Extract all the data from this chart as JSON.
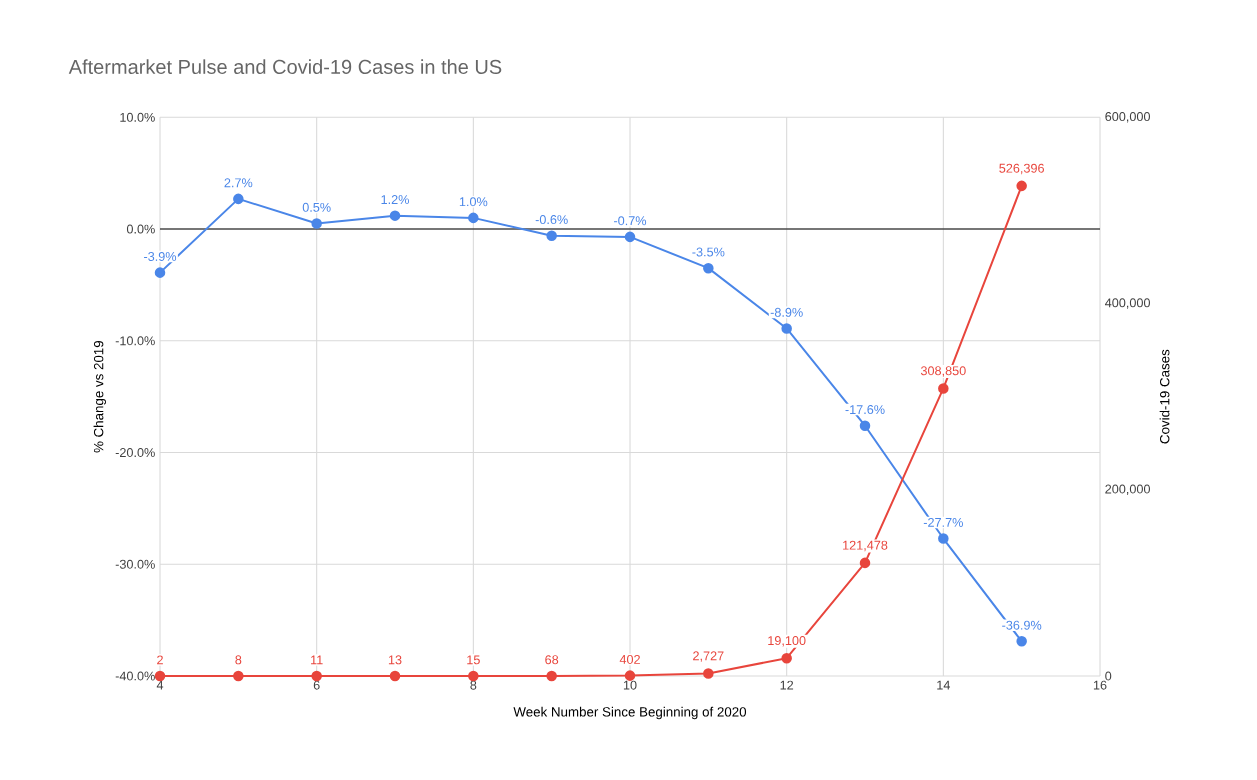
{
  "chart_data": {
    "type": "line",
    "title": "Aftermarket Pulse and Covid-19 Cases in the US",
    "xlabel": "Week Number Since Beginning of 2020",
    "ylabel": "% Change vs 2019",
    "y2label": "Covid-19 Cases",
    "x": [
      4,
      5,
      6,
      7,
      8,
      9,
      10,
      11,
      12,
      13,
      14,
      15
    ],
    "series": [
      {
        "color": "#4a86e8",
        "values": [
          -3.9,
          2.7,
          0.5,
          1.2,
          1.0,
          -0.6,
          -0.7,
          -3.5,
          -8.9,
          -17.6,
          -27.7,
          -36.9
        ],
        "value_labels": [
          "-3.9%",
          "2.7%",
          "0.5%",
          "1.2%",
          "1.0%",
          "-0.6%",
          "-0.7%",
          "-3.5%",
          "-8.9%",
          "-17.6%",
          "-27.7%",
          "-36.9%"
        ]
      },
      {
        "color": "#e8453c",
        "axis": "y2",
        "values": [
          2,
          8,
          11,
          13,
          15,
          68,
          402,
          2727,
          19100,
          121478,
          308850,
          526396
        ],
        "value_labels": [
          "2",
          "8",
          "11",
          "13",
          "15",
          "68",
          "402",
          "2,727",
          "19,100",
          "121,478",
          "308,850",
          "526,396"
        ]
      }
    ],
    "xlim": [
      4,
      16
    ],
    "xticks": [
      4,
      6,
      8,
      10,
      12,
      14,
      16
    ],
    "ylim": [
      -40,
      10
    ],
    "yticks": [
      {
        "value": -40,
        "label": "-40.0%"
      },
      {
        "value": -30,
        "label": "-30.0%"
      },
      {
        "value": -20,
        "label": "-20.0%"
      },
      {
        "value": -10,
        "label": "-10.0%"
      },
      {
        "value": 0,
        "label": "0.0%"
      },
      {
        "value": 10,
        "label": "10.0%"
      }
    ],
    "y2lim": [
      0,
      600000
    ],
    "y2ticks": [
      0,
      {
        "value": 200000,
        "label": "200,000"
      },
      {
        "value": 400000,
        "label": "400,000"
      },
      {
        "value": 600000,
        "label": "600,000"
      }
    ],
    "ref_lines": [
      {
        "axis": "y",
        "value": 0,
        "color": "#000000"
      }
    ],
    "grid": true,
    "marker": "circle",
    "line_style": "solid"
  }
}
